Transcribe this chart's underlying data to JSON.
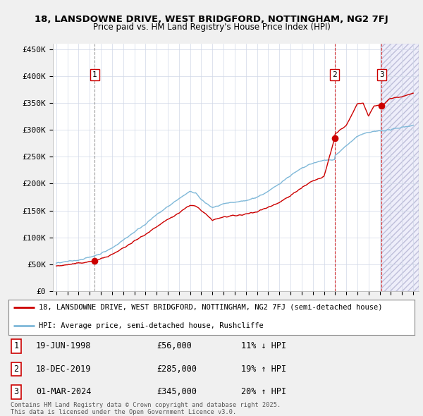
{
  "title_line1": "18, LANSDOWNE DRIVE, WEST BRIDGFORD, NOTTINGHAM, NG2 7FJ",
  "title_line2": "Price paid vs. HM Land Registry's House Price Index (HPI)",
  "background_color": "#f0f0f0",
  "plot_bg_color": "#ffffff",
  "ylim": [
    0,
    460000
  ],
  "yticks": [
    0,
    50000,
    100000,
    150000,
    200000,
    250000,
    300000,
    350000,
    400000,
    450000
  ],
  "ytick_labels": [
    "£0",
    "£50K",
    "£100K",
    "£150K",
    "£200K",
    "£250K",
    "£300K",
    "£350K",
    "£400K",
    "£450K"
  ],
  "xlim_start": 1994.7,
  "xlim_end": 2027.5,
  "hpi_color": "#7fb8d8",
  "price_color": "#cc0000",
  "sale_points": [
    {
      "year": 1998.46,
      "price": 56000,
      "label": "1"
    },
    {
      "year": 2019.96,
      "price": 285000,
      "label": "2"
    },
    {
      "year": 2024.16,
      "price": 345000,
      "label": "3"
    }
  ],
  "legend_entries": [
    {
      "label": "18, LANSDOWNE DRIVE, WEST BRIDGFORD, NOTTINGHAM, NG2 7FJ (semi-detached house)",
      "color": "#cc0000"
    },
    {
      "label": "HPI: Average price, semi-detached house, Rushcliffe",
      "color": "#7fb8d8"
    }
  ],
  "table_rows": [
    {
      "num": "1",
      "date": "19-JUN-1998",
      "price": "£56,000",
      "hpi": "11% ↓ HPI"
    },
    {
      "num": "2",
      "date": "18-DEC-2019",
      "price": "£285,000",
      "hpi": "19% ↑ HPI"
    },
    {
      "num": "3",
      "date": "01-MAR-2024",
      "price": "£345,000",
      "hpi": "20% ↑ HPI"
    }
  ],
  "footer": "Contains HM Land Registry data © Crown copyright and database right 2025.\nThis data is licensed under the Open Government Licence v3.0."
}
